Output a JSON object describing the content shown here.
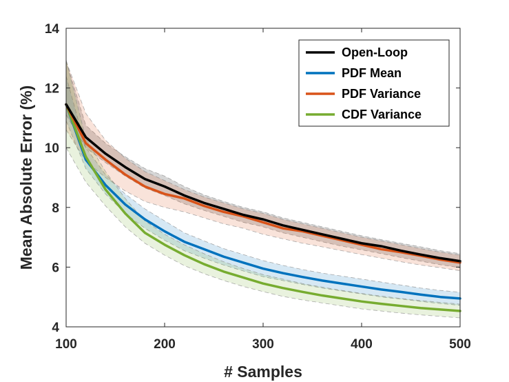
{
  "chart_data": {
    "type": "line",
    "title": "",
    "xlabel": "# Samples",
    "ylabel": "Mean Absolute Error (%)",
    "xlim": [
      100,
      500
    ],
    "ylim": [
      4,
      14
    ],
    "xticks": [
      "100",
      "200",
      "300",
      "400",
      "500"
    ],
    "yticks": [
      "4",
      "6",
      "8",
      "10",
      "12",
      "14"
    ],
    "x": [
      100,
      120,
      140,
      160,
      180,
      200,
      220,
      240,
      260,
      280,
      300,
      320,
      340,
      360,
      380,
      400,
      420,
      440,
      460,
      480,
      500
    ],
    "legend_position": "top-right",
    "grid": false,
    "series": [
      {
        "name": "Open-Loop",
        "color": "#000000",
        "values": [
          11.45,
          10.35,
          9.8,
          9.35,
          8.95,
          8.7,
          8.4,
          8.15,
          7.95,
          7.75,
          7.6,
          7.4,
          7.25,
          7.1,
          6.95,
          6.8,
          6.7,
          6.55,
          6.42,
          6.3,
          6.2
        ],
        "lower": [
          11.1,
          10.0,
          9.5,
          9.05,
          8.65,
          8.4,
          8.12,
          7.9,
          7.7,
          7.5,
          7.35,
          7.15,
          7.0,
          6.85,
          6.7,
          6.58,
          6.45,
          6.32,
          6.2,
          6.08,
          5.98
        ],
        "upper": [
          12.9,
          10.75,
          10.15,
          9.7,
          9.3,
          9.05,
          8.7,
          8.42,
          8.2,
          8.0,
          7.85,
          7.65,
          7.5,
          7.35,
          7.2,
          7.05,
          6.92,
          6.8,
          6.68,
          6.55,
          6.45
        ]
      },
      {
        "name": "PDF Mean",
        "color": "#0072BD",
        "values": [
          11.45,
          9.6,
          8.75,
          8.1,
          7.6,
          7.2,
          6.85,
          6.6,
          6.35,
          6.15,
          5.95,
          5.8,
          5.67,
          5.55,
          5.45,
          5.35,
          5.25,
          5.17,
          5.08,
          5.0,
          4.95
        ],
        "lower": [
          10.9,
          9.3,
          8.45,
          7.8,
          7.3,
          6.9,
          6.55,
          6.3,
          6.07,
          5.87,
          5.68,
          5.55,
          5.42,
          5.3,
          5.2,
          5.1,
          5.0,
          4.93,
          4.85,
          4.78,
          4.72
        ],
        "upper": [
          12.4,
          10.0,
          9.1,
          8.45,
          7.95,
          7.55,
          7.15,
          6.88,
          6.62,
          6.42,
          6.22,
          6.06,
          5.92,
          5.8,
          5.7,
          5.6,
          5.5,
          5.4,
          5.3,
          5.22,
          5.16
        ]
      },
      {
        "name": "PDF Variance",
        "color": "#D95319",
        "values": [
          11.45,
          10.15,
          9.6,
          9.1,
          8.7,
          8.45,
          8.3,
          8.05,
          7.85,
          7.7,
          7.5,
          7.3,
          7.2,
          7.05,
          6.9,
          6.75,
          6.6,
          6.5,
          6.38,
          6.25,
          6.15
        ],
        "lower": [
          10.6,
          9.55,
          9.0,
          8.55,
          8.2,
          8.0,
          7.85,
          7.65,
          7.45,
          7.3,
          7.1,
          6.95,
          6.8,
          6.68,
          6.55,
          6.42,
          6.3,
          6.18,
          6.07,
          5.98,
          5.88
        ],
        "upper": [
          12.9,
          11.15,
          10.25,
          9.65,
          9.2,
          8.9,
          8.6,
          8.35,
          8.15,
          7.95,
          7.8,
          7.6,
          7.45,
          7.3,
          7.15,
          7.0,
          6.88,
          6.75,
          6.62,
          6.5,
          6.4
        ]
      },
      {
        "name": "CDF Variance",
        "color": "#77AC30",
        "values": [
          11.45,
          9.7,
          8.6,
          7.8,
          7.15,
          6.75,
          6.4,
          6.1,
          5.85,
          5.65,
          5.45,
          5.3,
          5.17,
          5.05,
          4.95,
          4.85,
          4.77,
          4.7,
          4.63,
          4.58,
          4.53
        ],
        "lower": [
          10.0,
          8.85,
          8.05,
          7.35,
          6.8,
          6.4,
          6.05,
          5.78,
          5.55,
          5.35,
          5.18,
          5.02,
          4.9,
          4.8,
          4.7,
          4.6,
          4.53,
          4.46,
          4.4,
          4.35,
          4.3
        ],
        "upper": [
          12.95,
          10.3,
          9.2,
          8.3,
          7.55,
          7.1,
          6.75,
          6.45,
          6.18,
          5.95,
          5.75,
          5.6,
          5.45,
          5.33,
          5.22,
          5.12,
          5.03,
          4.95,
          4.88,
          4.82,
          4.76
        ]
      }
    ]
  }
}
